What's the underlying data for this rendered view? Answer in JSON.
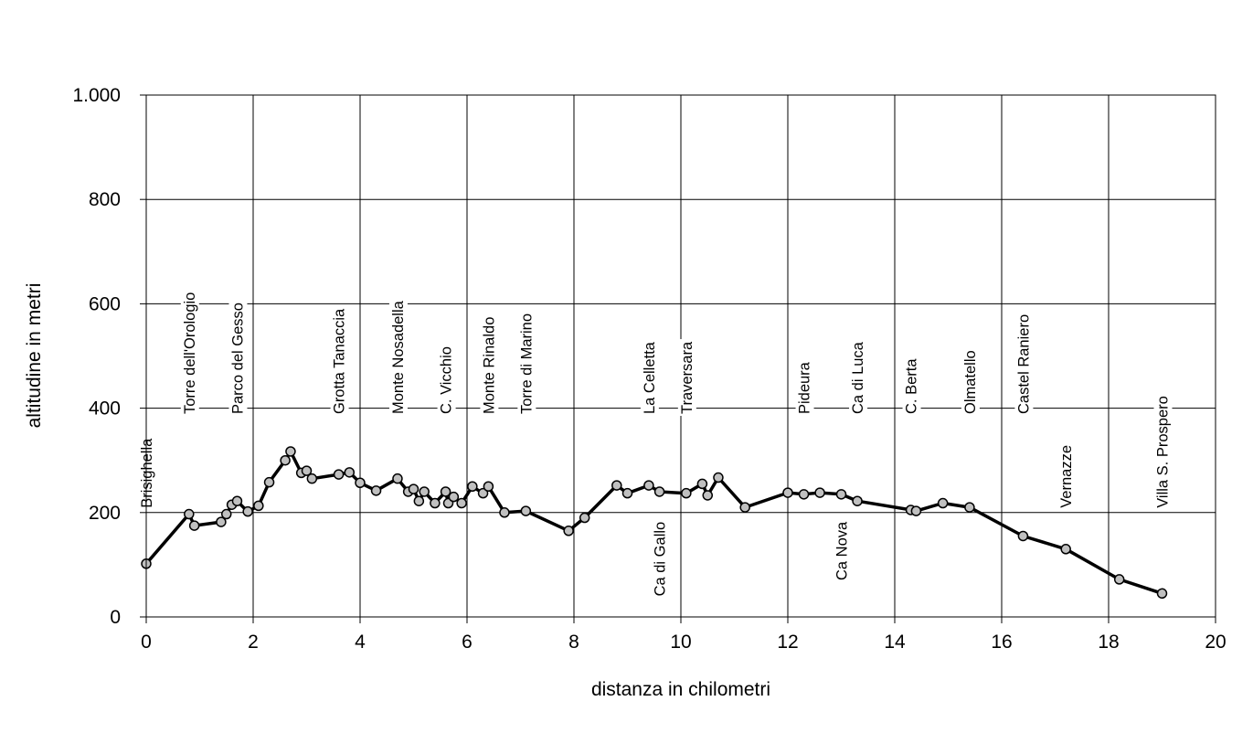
{
  "chart_data": {
    "type": "line",
    "title": "",
    "xlabel": "distanza in chilometri",
    "ylabel": "altitudine  in metri",
    "xlim": [
      0,
      20
    ],
    "ylim": [
      0,
      1000
    ],
    "x_ticks": [
      0,
      2,
      4,
      6,
      8,
      10,
      12,
      14,
      16,
      18,
      20
    ],
    "y_ticks": [
      0,
      200,
      400,
      600,
      800,
      1000
    ],
    "x_tick_labels": [
      "0",
      "2",
      "4",
      "6",
      "8",
      "10",
      "12",
      "14",
      "16",
      "18",
      "20"
    ],
    "y_tick_labels": [
      "0",
      "200",
      "400",
      "600",
      "800",
      "1.000"
    ],
    "grid": true,
    "legend": "none",
    "line_color": "#000000",
    "marker_color": "#c0c0c0",
    "series": [
      {
        "points": [
          [
            0,
            102
          ],
          [
            0.8,
            197
          ],
          [
            0.9,
            175
          ],
          [
            1.4,
            182
          ],
          [
            1.5,
            197
          ],
          [
            1.6,
            215
          ],
          [
            1.7,
            222
          ],
          [
            1.9,
            202
          ],
          [
            2.1,
            213
          ],
          [
            2.3,
            258
          ],
          [
            2.6,
            300
          ],
          [
            2.7,
            317
          ],
          [
            2.9,
            276
          ],
          [
            3.0,
            280
          ],
          [
            3.1,
            265
          ],
          [
            3.6,
            273
          ],
          [
            3.8,
            277
          ],
          [
            4.0,
            257
          ],
          [
            4.3,
            242
          ],
          [
            4.7,
            265
          ],
          [
            4.9,
            240
          ],
          [
            5.0,
            245
          ],
          [
            5.1,
            222
          ],
          [
            5.2,
            240
          ],
          [
            5.4,
            218
          ],
          [
            5.6,
            240
          ],
          [
            5.65,
            218
          ],
          [
            5.75,
            230
          ],
          [
            5.9,
            218
          ],
          [
            6.1,
            250
          ],
          [
            6.3,
            237
          ],
          [
            6.4,
            250
          ],
          [
            6.7,
            200
          ],
          [
            7.1,
            203
          ],
          [
            7.9,
            165
          ],
          [
            8.2,
            190
          ],
          [
            8.8,
            252
          ],
          [
            9.0,
            237
          ],
          [
            9.4,
            252
          ],
          [
            9.6,
            240
          ],
          [
            10.1,
            237
          ],
          [
            10.4,
            255
          ],
          [
            10.5,
            233
          ],
          [
            10.7,
            267
          ],
          [
            11.2,
            210
          ],
          [
            12.0,
            238
          ],
          [
            12.3,
            235
          ],
          [
            12.6,
            238
          ],
          [
            13.0,
            235
          ],
          [
            13.3,
            222
          ],
          [
            14.3,
            205
          ],
          [
            14.4,
            203
          ],
          [
            14.9,
            218
          ],
          [
            15.4,
            210
          ],
          [
            16.4,
            155
          ],
          [
            17.2,
            130
          ],
          [
            18.2,
            72
          ],
          [
            19.0,
            45
          ]
        ]
      }
    ],
    "annotations": [
      {
        "text": "Brisighella",
        "x": 0,
        "y": 200,
        "position": "above"
      },
      {
        "text": "Torre dell'Orologio",
        "x": 0.8,
        "y": 380,
        "position": "above"
      },
      {
        "text": "Parco del Gesso",
        "x": 1.7,
        "y": 380,
        "position": "above"
      },
      {
        "text": "Grotta Tanaccia",
        "x": 3.6,
        "y": 380,
        "position": "above"
      },
      {
        "text": "Monte Nosadella",
        "x": 4.7,
        "y": 380,
        "position": "above"
      },
      {
        "text": "C. Vicchio",
        "x": 5.6,
        "y": 380,
        "position": "above"
      },
      {
        "text": "Monte Rinaldo",
        "x": 6.4,
        "y": 380,
        "position": "above"
      },
      {
        "text": "Torre di Marino",
        "x": 7.1,
        "y": 380,
        "position": "above"
      },
      {
        "text": "La Celletta",
        "x": 9.4,
        "y": 380,
        "position": "above"
      },
      {
        "text": "Traversara",
        "x": 10.1,
        "y": 380,
        "position": "above"
      },
      {
        "text": "Ca di Gallo",
        "x": 9.6,
        "y": 200,
        "position": "below"
      },
      {
        "text": "Pideura",
        "x": 12.3,
        "y": 380,
        "position": "above"
      },
      {
        "text": "Ca di Luca",
        "x": 13.3,
        "y": 380,
        "position": "above"
      },
      {
        "text": "Ca Nova",
        "x": 13.0,
        "y": 200,
        "position": "below"
      },
      {
        "text": "C. Berta",
        "x": 14.3,
        "y": 380,
        "position": "above"
      },
      {
        "text": "Olmatello",
        "x": 15.4,
        "y": 380,
        "position": "above"
      },
      {
        "text": "Castel Raniero",
        "x": 16.4,
        "y": 380,
        "position": "above"
      },
      {
        "text": "Vernazze",
        "x": 17.2,
        "y": 200,
        "position": "above"
      },
      {
        "text": "Villa S. Prospero",
        "x": 19.0,
        "y": 200,
        "position": "above"
      }
    ]
  }
}
